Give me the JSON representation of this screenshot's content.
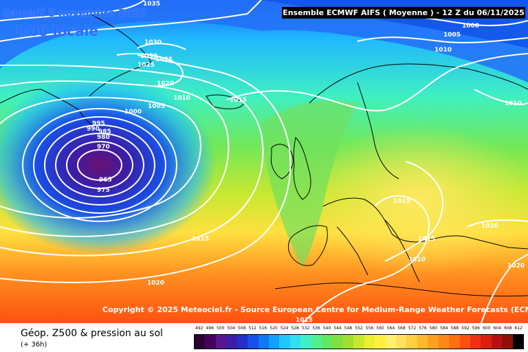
{
  "header": {
    "date": "Samedi 8 novembre 2025",
    "local_time": "1:00 locale",
    "run_info": "Ensemble ECMWF AIFS  ( Moyenne )  - 12 Z du 06/11/2025"
  },
  "map": {
    "pressure_labels": [
      "1035",
      "1030",
      "1025",
      "1030",
      "1025",
      "1020",
      "1010",
      "1015",
      "1005",
      "1000",
      "995",
      "990",
      "985",
      "980",
      "970",
      "965",
      "975",
      "1015",
      "1020",
      "1000",
      "1005",
      "1010",
      "1010",
      "1015",
      "1015",
      "1010",
      "1020",
      "1020",
      "1015"
    ],
    "low_center_fill": "#6a1070",
    "isobar_color": "#ffffff",
    "coastline_color": "#000000"
  },
  "copyright": "Copyright © 2025 Meteociel.fr - Source European Centre for Medium-Range Weather Forecasts (ECMWF)",
  "footer": {
    "title": "Géop. Z500 & pression au sol",
    "lead_time": "(+ 36h)"
  },
  "legend": {
    "values": [
      "492",
      "496",
      "500",
      "504",
      "508",
      "512",
      "516",
      "520",
      "524",
      "528",
      "532",
      "536",
      "540",
      "544",
      "548",
      "552",
      "556",
      "560",
      "564",
      "568",
      "572",
      "576",
      "580",
      "584",
      "588",
      "592",
      "596",
      "600",
      "604",
      "608",
      "612"
    ],
    "colors": [
      "#2b0033",
      "#46005c",
      "#5a1490",
      "#3a1ea8",
      "#2430c8",
      "#1850e8",
      "#1078f8",
      "#10a0ff",
      "#20c8ff",
      "#30e0f0",
      "#40f0c8",
      "#50f090",
      "#60e860",
      "#80e040",
      "#a0e030",
      "#c8e830",
      "#e8f030",
      "#fff040",
      "#fff070",
      "#ffe060",
      "#ffd040",
      "#ffb830",
      "#ffa020",
      "#ff8818",
      "#ff7010",
      "#ff5010",
      "#f03010",
      "#d82010",
      "#b81010",
      "#901008",
      "#000000"
    ]
  }
}
